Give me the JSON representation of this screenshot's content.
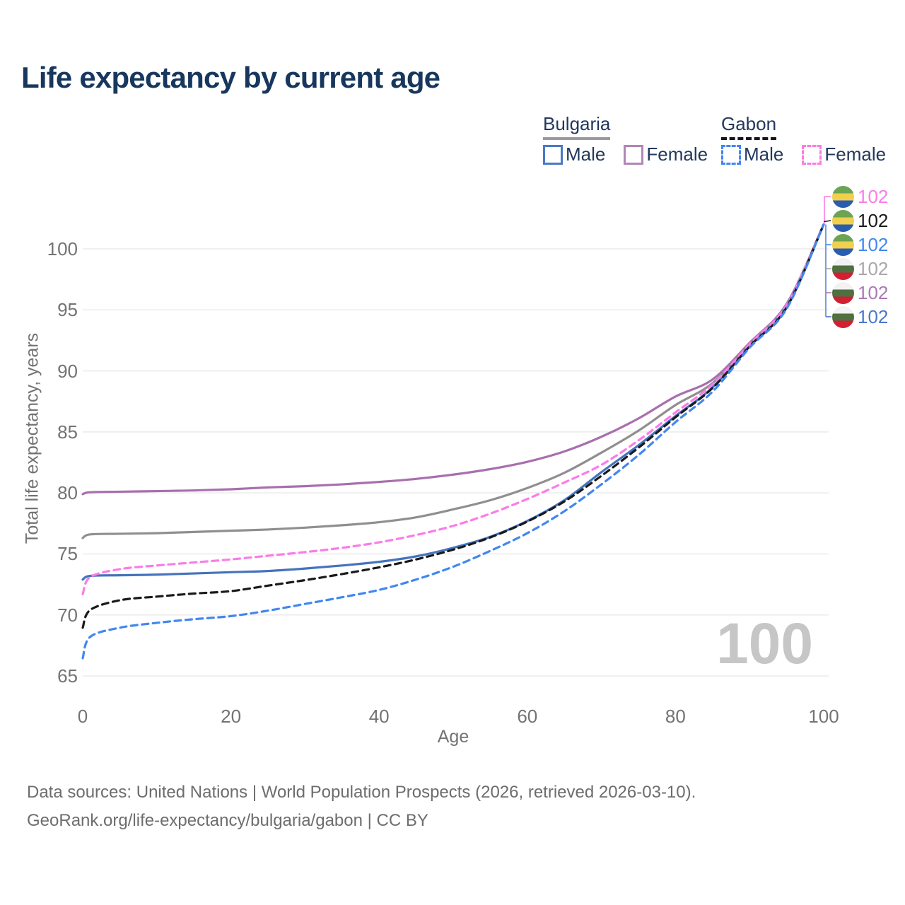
{
  "title": "Life expectancy by current age",
  "watermark": "100",
  "legend": {
    "groups": [
      {
        "country": "Bulgaria",
        "underline": "solid-gray",
        "items": [
          {
            "label": "Male",
            "color": "#4a79c6",
            "dashed": false
          },
          {
            "label": "Female",
            "color": "#b286b4",
            "dashed": false
          }
        ]
      },
      {
        "country": "Gabon",
        "underline": "dashed-black",
        "items": [
          {
            "label": "Male",
            "color": "#4285f4",
            "dashed": true
          },
          {
            "label": "Female",
            "color": "#fb7ce0",
            "dashed": true
          }
        ]
      }
    ]
  },
  "footer": {
    "line1": "Data sources: United Nations | World Population Prospects (2026, retrieved 2026-03-10).",
    "line2": "GeoRank.org/life-expectancy/bulgaria/gabon | CC BY"
  },
  "flags": {
    "gabon": [
      "#6ca552",
      "#f2cf4d",
      "#2a5cb0"
    ],
    "bulgaria": [
      "#f2f2f2",
      "#4f7040",
      "#d21f32"
    ]
  },
  "chart_data": {
    "type": "line",
    "title": "Life expectancy by current age",
    "xlabel": "Age",
    "ylabel": "Total life expectancy, years",
    "xlim": [
      0,
      100
    ],
    "ylim": [
      65,
      102.5
    ],
    "xticks": [
      0,
      20,
      40,
      60,
      80,
      100
    ],
    "yticks": [
      65,
      70,
      75,
      80,
      85,
      90,
      95,
      100
    ],
    "grid": "horizontal",
    "x": [
      0,
      1,
      5,
      10,
      15,
      20,
      25,
      30,
      35,
      40,
      45,
      50,
      55,
      60,
      65,
      70,
      75,
      80,
      85,
      90,
      95,
      100
    ],
    "series": [
      {
        "name": "Bulgaria Female",
        "country": "Bulgaria",
        "sex": "Female",
        "color": "#a86fad",
        "dashed": false,
        "values": [
          79.9,
          80.05,
          80.1,
          80.15,
          80.2,
          80.3,
          80.45,
          80.55,
          80.7,
          80.9,
          81.15,
          81.5,
          81.95,
          82.55,
          83.4,
          84.6,
          86.1,
          87.9,
          89.3,
          92.3,
          95.5,
          102
        ]
      },
      {
        "name": "Bulgaria",
        "country": "Bulgaria",
        "sex": "Both",
        "color": "#8f8f8f",
        "dashed": false,
        "values": [
          76.3,
          76.6,
          76.65,
          76.7,
          76.8,
          76.9,
          77.0,
          77.15,
          77.35,
          77.6,
          78.0,
          78.65,
          79.4,
          80.4,
          81.65,
          83.3,
          85.1,
          87.2,
          89.0,
          92.2,
          95.4,
          102
        ]
      },
      {
        "name": "Bulgaria Male",
        "country": "Bulgaria",
        "sex": "Male",
        "color": "#4573bd",
        "dashed": false,
        "values": [
          72.9,
          73.2,
          73.25,
          73.3,
          73.4,
          73.5,
          73.6,
          73.8,
          74.05,
          74.35,
          74.8,
          75.5,
          76.4,
          77.7,
          79.4,
          81.7,
          83.9,
          86.3,
          88.65,
          92.1,
          95.3,
          102
        ]
      },
      {
        "name": "Gabon Female",
        "country": "Gabon",
        "sex": "Female",
        "color": "#fb7ce8",
        "dashed": true,
        "values": [
          71.7,
          73.1,
          73.75,
          74.05,
          74.3,
          74.55,
          74.85,
          75.15,
          75.5,
          75.95,
          76.55,
          77.3,
          78.3,
          79.5,
          80.85,
          82.3,
          84.3,
          86.6,
          88.9,
          92.2,
          95.4,
          102
        ]
      },
      {
        "name": "Gabon",
        "country": "Gabon",
        "sex": "Both",
        "color": "#1a1a1a",
        "dashed": true,
        "values": [
          68.95,
          70.4,
          71.2,
          71.5,
          71.75,
          71.95,
          72.4,
          72.85,
          73.35,
          73.9,
          74.55,
          75.35,
          76.35,
          77.65,
          79.3,
          81.4,
          83.7,
          86.2,
          88.6,
          92.0,
          95.2,
          102
        ]
      },
      {
        "name": "Gabon Male",
        "country": "Gabon",
        "sex": "Male",
        "color": "#4187f0",
        "dashed": true,
        "values": [
          66.45,
          68.2,
          68.95,
          69.35,
          69.65,
          69.9,
          70.35,
          70.9,
          71.45,
          72.05,
          72.9,
          73.95,
          75.25,
          76.7,
          78.5,
          80.7,
          83.1,
          85.8,
          88.3,
          91.9,
          95.1,
          102
        ]
      }
    ],
    "end_labels": [
      {
        "text": "102",
        "color": "#fb7ce8",
        "flag": "gabon",
        "series": "Gabon Female"
      },
      {
        "text": "102",
        "color": "#1a1a1a",
        "flag": "gabon",
        "series": "Gabon"
      },
      {
        "text": "102",
        "color": "#4187f0",
        "flag": "gabon",
        "series": "Gabon Male"
      },
      {
        "text": "102",
        "color": "#a8a8a8",
        "flag": "bulgaria",
        "series": "Bulgaria"
      },
      {
        "text": "102",
        "color": "#ab79b5",
        "flag": "bulgaria",
        "series": "Bulgaria Female"
      },
      {
        "text": "102",
        "color": "#4a78c8",
        "flag": "bulgaria",
        "series": "Bulgaria Male"
      }
    ]
  }
}
